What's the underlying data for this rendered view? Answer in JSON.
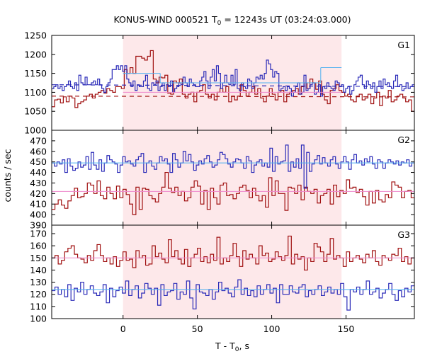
{
  "chart_data": {
    "type": "line",
    "title_main": "KONUS-WIND 000521 T",
    "title_sub": "0",
    "title_rest": " = 12243s UT (03:24:03.000)",
    "ylabel": "counts / sec",
    "xlabel_main": "T - T",
    "xlabel_sub": "0",
    "xlabel_rest": ", s",
    "xlim": [
      -48,
      196
    ],
    "xticks": [
      0,
      50,
      100,
      150
    ],
    "xtick_labels": [
      "0",
      "50",
      "100",
      "150"
    ],
    "shaded_interval": [
      0,
      147
    ],
    "colors": {
      "shade": "#fde8ea",
      "dark_red": "#a01010",
      "blue": "#2a2ab8",
      "light_blue": "#4fb0f0",
      "pink": "#ee88cc"
    },
    "panels": [
      {
        "label": "G1",
        "ylim": [
          1000,
          1250
        ],
        "yticks": [
          1000,
          1050,
          1100,
          1150,
          1200,
          1250
        ],
        "ytick_labels": [
          "1000",
          "1050",
          "1100",
          "1150",
          "1200",
          "1250"
        ],
        "bg_dark_red": 1090,
        "bg_blue": 1120,
        "bg_blue_end": 1115,
        "bg_dark_red_end": 1088,
        "fit_blue": [
          {
            "x0": 0,
            "x1": 25,
            "y": 1150
          },
          {
            "x0": 25,
            "x1": 133,
            "y": 1125
          },
          {
            "x0": 133,
            "x1": 147,
            "y": 1165
          }
        ],
        "fit_dark_red": [
          {
            "x0": 0,
            "x1": 147,
            "y": 1100
          }
        ],
        "series": [
          {
            "color": "dark_red",
            "values": [
              1062,
              1080,
              1082,
              1072,
              1088,
              1075,
              1090,
              1085,
              1060,
              1070,
              1075,
              1080,
              1090,
              1095,
              1085,
              1095,
              1100,
              1105,
              1098,
              1110,
              1105,
              1100,
              1115,
              1115,
              1110,
              1160,
              1150,
              1165,
              1150,
              1195,
              1195,
              1190,
              1185,
              1195,
              1210,
              1135,
              1125,
              1140,
              1138,
              1145,
              1098,
              1095,
              1130,
              1125,
              1135,
              1095,
              1085,
              1095,
              1100,
              1075,
              1100,
              1105,
              1120,
              1095,
              1085,
              1095,
              1080,
              1100,
              1110,
              1100,
              1115,
              1075,
              1090,
              1080,
              1090,
              1120,
              1105,
              1090,
              1100,
              1115,
              1095,
              1110,
              1085,
              1075,
              1090,
              1110,
              1095,
              1080,
              1100,
              1105,
              1075,
              1095,
              1100,
              1105,
              1110,
              1095,
              1115,
              1125,
              1110,
              1135,
              1125,
              1108,
              1130,
              1095,
              1080,
              1070,
              1105,
              1110,
              1120,
              1105,
              1100,
              1090,
              1095,
              1080,
              1075,
              1090,
              1095,
              1080,
              1085,
              1095,
              1070,
              1085,
              1100,
              1065,
              1090,
              1085,
              1105,
              1075,
              1080,
              1090,
              1095,
              1085,
              1075,
              1080,
              1050
            ]
          },
          {
            "color": "blue",
            "values": [
              1110,
              1115,
              1120,
              1110,
              1115,
              1105,
              1115,
              1120,
              1130,
              1115,
              1110,
              1125,
              1105,
              1145,
              1125,
              1120,
              1140,
              1120,
              1120,
              1125,
              1130,
              1120,
              1135,
              1120,
              1110,
              1100,
              1115,
              1125,
              1135,
              1160,
              1160,
              1170,
              1160,
              1170,
              1155,
              1170,
              1135,
              1125,
              1115,
              1130,
              1105,
              1120,
              1115,
              1115,
              1130,
              1145,
              1110,
              1105,
              1125,
              1120,
              1130,
              1105,
              1115,
              1125,
              1105,
              1120,
              1115,
              1130,
              1100,
              1110,
              1115,
              1125,
              1120,
              1140,
              1125,
              1115,
              1135,
              1125,
              1120,
              1115,
              1115,
              1130,
              1140,
              1155,
              1130,
              1110,
              1140,
              1160,
              1130,
              1170,
              1150,
              1110,
              1125,
              1145,
              1125,
              1120,
              1145,
              1120,
              1160,
              1110,
              1105,
              1125,
              1115,
              1110,
              1135,
              1130,
              1110,
              1125,
              1140,
              1135,
              1145,
              1135,
              1150,
              1185,
              1175,
              1160,
              1140,
              1155,
              1150,
              1105,
              1110,
              1115,
              1105,
              1115,
              1110,
              1090,
              1100,
              1115,
              1125,
              1095,
              1100,
              1145,
              1105,
              1110,
              1120,
              1125,
              1095,
              1100,
              1120,
              1090,
              1115,
              1110,
              1125,
              1115,
              1110,
              1105,
              1130,
              1125,
              1115,
              1120,
              1100,
              1110,
              1115,
              1095,
              1105,
              1120,
              1130,
              1140,
              1145,
              1120,
              1110,
              1130,
              1120,
              1110,
              1125,
              1100,
              1115,
              1130,
              1110,
              1135,
              1120,
              1125,
              1115,
              1110,
              1130,
              1145,
              1115,
              1120,
              1105,
              1110,
              1125,
              1110,
              1115,
              1120
            ]
          }
        ]
      },
      {
        "label": "G2",
        "ylim": [
          390,
          480
        ],
        "yticks": [
          390,
          400,
          410,
          420,
          430,
          440,
          450,
          460,
          470
        ],
        "ytick_labels": [
          "390",
          "400",
          "410",
          "420",
          "430",
          "440",
          "450",
          "460",
          "470"
        ],
        "fit_blue": [
          {
            "x0": -48,
            "x1": 196,
            "y": 449
          }
        ],
        "fit_dark_red": [
          {
            "x0": -48,
            "x1": 196,
            "y": 422
          }
        ],
        "series": [
          {
            "color": "dark_red",
            "values": [
              405,
              410,
              414,
              409,
              406,
              413,
              418,
              425,
              416,
              417,
              420,
              430,
              428,
              420,
              432,
              418,
              415,
              426,
              420,
              415,
              427,
              416,
              424,
              419,
              410,
              400,
              426,
              405,
              425,
              424,
              418,
              415,
              412,
              420,
              426,
              440,
              425,
              421,
              426,
              418,
              422,
              413,
              416,
              426,
              432,
              427,
              410,
              423,
              405,
              425,
              416,
              410,
              428,
              430,
              418,
              419,
              415,
              420,
              426,
              428,
              423,
              416,
              425,
              418,
              413,
              418,
              407,
              435,
              418,
              432,
              420,
              420,
              404,
              426,
              425,
              420,
              428,
              414,
              426,
              422,
              420,
              424,
              411,
              418,
              420,
              424,
              410,
              428,
              417,
              423,
              420,
              433,
              425,
              426,
              421,
              424,
              417,
              409,
              422,
              411,
              423,
              414,
              412,
              419,
              416,
              431,
              428,
              426,
              416,
              422,
              423,
              416
            ]
          },
          {
            "color": "blue",
            "values": [
              449,
              446,
              450,
              448,
              452,
              440,
              453,
              446,
              442,
              444,
              450,
              445,
              447,
              455,
              443,
              459,
              447,
              443,
              452,
              441,
              449,
              456,
              452,
              450,
              448,
              440,
              447,
              455,
              450,
              451,
              448,
              446,
              452,
              455,
              458,
              440,
              449,
              451,
              446,
              443,
              449,
              455,
              451,
              453,
              448,
              440,
              458,
              452,
              445,
              449,
              460,
              451,
              457,
              450,
              442,
              447,
              451,
              448,
              453,
              456,
              450,
              445,
              447,
              452,
              459,
              457,
              453,
              448,
              445,
              450,
              453,
              452,
              449,
              444,
              455,
              451,
              440,
              447,
              450,
              452,
              446,
              449,
              445,
              463,
              441,
              455,
              448,
              450,
              451,
              466,
              441,
              450,
              445,
              453,
              444,
              466,
              425,
              459,
              441,
              448,
              452,
              456,
              448,
              454,
              449,
              446,
              452,
              455,
              448,
              444,
              450,
              455,
              450,
              443,
              452,
              457,
              449,
              451,
              447,
              453,
              450,
              455,
              448,
              444,
              452,
              450,
              444,
              449,
              452,
              450,
              448,
              451,
              447,
              450,
              449,
              452,
              446,
              449
            ]
          }
        ]
      },
      {
        "label": "G3",
        "ylim": [
          100,
          177
        ],
        "yticks": [
          100,
          110,
          120,
          130,
          140,
          150,
          160,
          170
        ],
        "ytick_labels": [
          "100",
          "110",
          "120",
          "130",
          "140",
          "150",
          "160",
          "170"
        ],
        "fit_blue": [
          {
            "x0": -48,
            "x1": 196,
            "y": 124
          }
        ],
        "fit_dark_red": [
          {
            "x0": -48,
            "x1": 196,
            "y": 150
          }
        ],
        "series": [
          {
            "color": "dark_red",
            "values": [
              150,
              152,
              145,
              148,
              155,
              158,
              160,
              153,
              150,
              149,
              146,
              152,
              148,
              156,
              161,
              152,
              147,
              150,
              145,
              151,
              143,
              148,
              155,
              148,
              149,
              142,
              156,
              150,
              152,
              144,
              145,
              160,
              151,
              154,
              149,
              146,
              165,
              151,
              156,
              149,
              145,
              157,
              143,
              150,
              153,
              158,
              147,
              151,
              146,
              153,
              148,
              167,
              145,
              150,
              147,
              152,
              162,
              151,
              143,
              156,
              149,
              153,
              150,
              145,
              160,
              152,
              154,
              147,
              149,
              155,
              151,
              148,
              152,
              168,
              145,
              153,
              149,
              151,
              140,
              150,
              147,
              162,
              159,
              155,
              147,
              153,
              166,
              149,
              152,
              150,
              143,
              155,
              147,
              150,
              152,
              149,
              146,
              153,
              150,
              156,
              147,
              144,
              152,
              150,
              148,
              153,
              152,
              158,
              147,
              151,
              145,
              150
            ]
          },
          {
            "color": "blue",
            "values": [
              123,
              126,
              120,
              124,
              118,
              128,
              115,
              125,
              122,
              130,
              120,
              124,
              127,
              121,
              119,
              122,
              128,
              113,
              125,
              118,
              123,
              126,
              121,
              131,
              119,
              124,
              127,
              117,
              121,
              129,
              125,
              120,
              125,
              111,
              128,
              119,
              122,
              123,
              129,
              116,
              122,
              120,
              131,
              117,
              108,
              128,
              122,
              121,
              119,
              124,
              116,
              122,
              130,
              123,
              125,
              121,
              118,
              126,
              132,
              120,
              125,
              119,
              123,
              118,
              127,
              120,
              124,
              128,
              121,
              125,
              113,
              128,
              120,
              120,
              127,
              122,
              121,
              126,
              128,
              118,
              123,
              120,
              124,
              127,
              119,
              122,
              126,
              121,
              124,
              120,
              129,
              118,
              107,
              124,
              122,
              126,
              120,
              124,
              131,
              120,
              122,
              125,
              117,
              121,
              124,
              129,
              120,
              115,
              123,
              118,
              125,
              122,
              127
            ]
          }
        ]
      }
    ]
  }
}
